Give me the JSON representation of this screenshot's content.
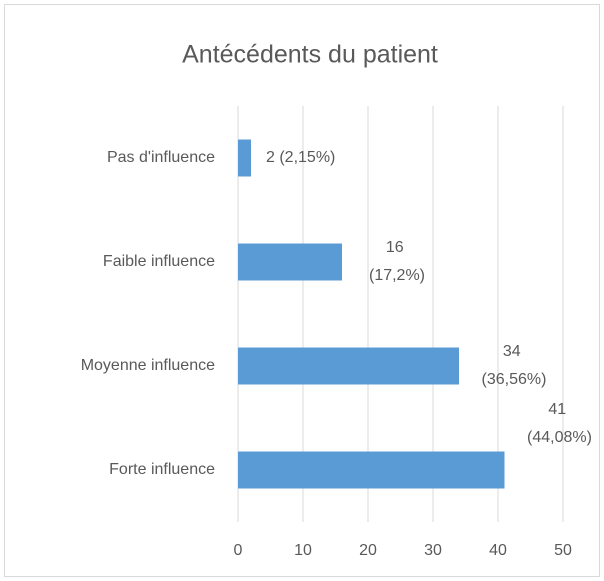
{
  "chart_data": {
    "type": "bar",
    "orientation": "horizontal",
    "title": "Antécédents du patient",
    "categories": [
      "Pas d'influence",
      "Faible influence",
      "Moyenne influence",
      "Forte influence"
    ],
    "values": [
      2,
      16,
      34,
      41
    ],
    "value_labels": [
      "2 (2,15%)",
      "16 (17,2%)",
      "34 (36,56%)",
      "41 (44,08%)"
    ],
    "color": "#5b9bd5",
    "xlim": [
      0,
      50
    ],
    "xticks": [
      0,
      10,
      20,
      30,
      40,
      50
    ],
    "grid": true
  }
}
